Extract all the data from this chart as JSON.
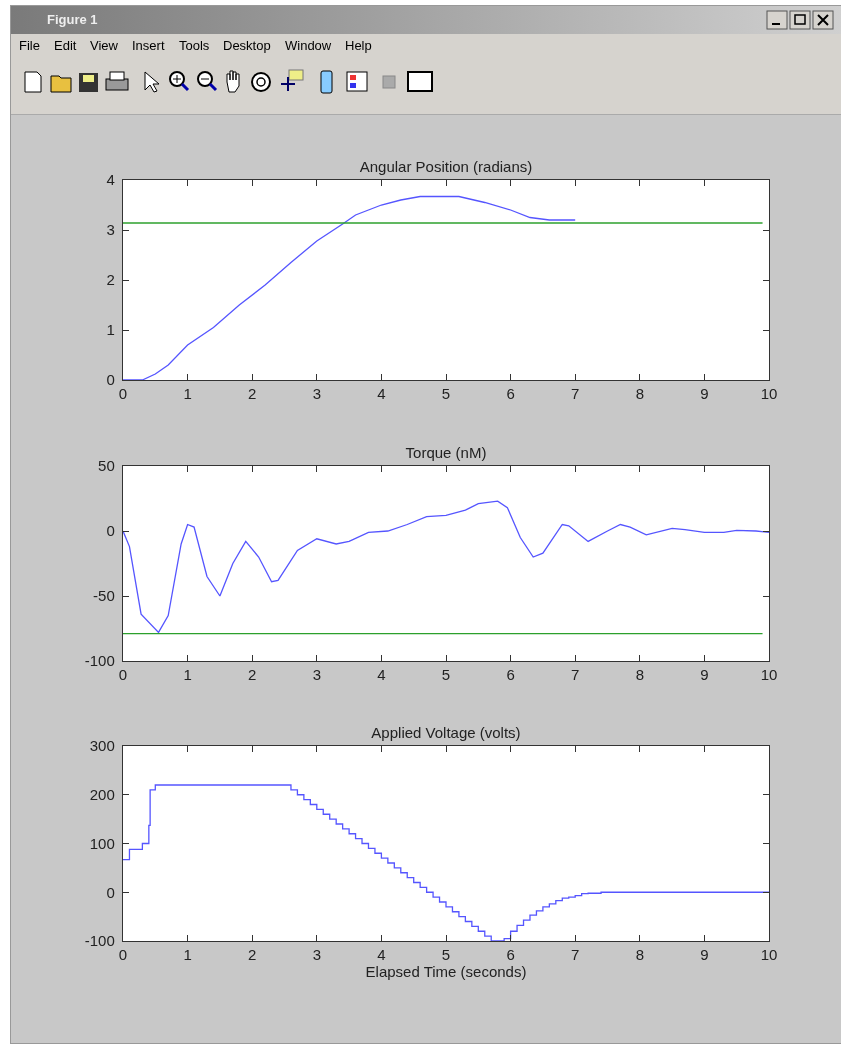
{
  "chart_data": [
    {
      "type": "line",
      "title": "Angular Position (radians)",
      "annotations": [
        "Figure 1",
        "File",
        "Edit",
        "View",
        "Insert",
        "Tools",
        "Desktop",
        "Window",
        "Help"
      ],
      "series": [
        {
          "color": "#5555ff",
          "x": [
            0,
            0.3,
            0.5,
            0.7,
            1.0,
            1.4,
            1.8,
            2.2,
            2.6,
            3.0,
            3.4,
            3.6,
            4.0,
            4.3,
            4.6,
            5.2,
            5.6,
            6.0,
            6.3,
            6.6,
            7.0
          ],
          "values": [
            0,
            0,
            0.12,
            0.3,
            0.7,
            1.05,
            1.5,
            1.9,
            2.35,
            2.78,
            3.12,
            3.3,
            3.5,
            3.6,
            3.67,
            3.67,
            3.55,
            3.4,
            3.25,
            3.2,
            3.2
          ]
        }
      ],
      "ref_lines": [
        {
          "axis": "y",
          "value": 3.14,
          "color": "#2ca02c"
        }
      ],
      "xlim": [
        0,
        10
      ],
      "xticks": [
        0,
        1,
        2,
        3,
        4,
        5,
        6,
        7,
        8,
        9,
        10
      ],
      "ylim": [
        0,
        4
      ],
      "yticks": [
        0,
        1,
        2,
        3,
        4
      ],
      "grid": false
    },
    {
      "type": "line",
      "title": "Torque (nM)",
      "series": [
        {
          "color": "#5555ff",
          "x": [
            0,
            0.1,
            0.28,
            0.55,
            0.7,
            0.9,
            1.0,
            1.1,
            1.3,
            1.5,
            1.7,
            1.9,
            2.1,
            2.3,
            2.4,
            2.7,
            3.0,
            3.3,
            3.5,
            3.8,
            4.1,
            4.4,
            4.7,
            5.0,
            5.3,
            5.5,
            5.8,
            5.95,
            6.15,
            6.35,
            6.5,
            6.8,
            6.9,
            7.2,
            7.5,
            7.7,
            7.85,
            8.1,
            8.5,
            8.7,
            9.0,
            9.3,
            9.5,
            9.8,
            10
          ],
          "values": [
            0,
            -12,
            -64,
            -78,
            -65,
            -10,
            5,
            3,
            -35,
            -50,
            -25,
            -8,
            -20,
            -39,
            -38,
            -15,
            -6,
            -10,
            -8,
            -1,
            0,
            5,
            11,
            12,
            16,
            21,
            23,
            18,
            -5,
            -20,
            -17,
            5,
            4,
            -8,
            0,
            5,
            3,
            -3,
            2,
            1,
            -1,
            -1,
            0.5,
            0,
            -1
          ]
        }
      ],
      "ref_lines": [
        {
          "axis": "y",
          "value": -79,
          "color": "#2ca02c"
        }
      ],
      "xlim": [
        0,
        10
      ],
      "xticks": [
        0,
        1,
        2,
        3,
        4,
        5,
        6,
        7,
        8,
        9,
        10
      ],
      "ylim": [
        -100,
        50
      ],
      "yticks": [
        -100,
        -50,
        0,
        50
      ],
      "grid": false
    },
    {
      "type": "step",
      "title": "Applied Voltage (volts)",
      "xlabel": "Elapsed Time (seconds)",
      "series": [
        {
          "color": "#5555ff",
          "x": [
            0,
            0.1,
            0.3,
            0.4,
            0.42,
            0.5,
            2.6,
            2.7,
            2.8,
            2.9,
            3.0,
            3.1,
            3.2,
            3.3,
            3.4,
            3.5,
            3.6,
            3.7,
            3.8,
            3.9,
            4.0,
            4.1,
            4.2,
            4.3,
            4.4,
            4.5,
            4.6,
            4.7,
            4.8,
            4.9,
            5.0,
            5.1,
            5.2,
            5.3,
            5.4,
            5.5,
            5.6,
            5.7,
            5.8,
            5.9,
            6.0,
            6.1,
            6.2,
            6.3,
            6.4,
            6.5,
            6.6,
            6.7,
            6.8,
            6.9,
            7.0,
            7.1,
            7.2,
            7.4,
            10
          ],
          "values": [
            67,
            88,
            100,
            137,
            210,
            220,
            210,
            200,
            190,
            180,
            170,
            160,
            150,
            140,
            130,
            120,
            110,
            100,
            90,
            80,
            70,
            60,
            50,
            40,
            30,
            20,
            10,
            0,
            -10,
            -20,
            -30,
            -40,
            -50,
            -60,
            -70,
            -80,
            -90,
            -100,
            -100,
            -95,
            -80,
            -68,
            -57,
            -47,
            -38,
            -30,
            -24,
            -17,
            -12,
            -10,
            -7,
            -3,
            -2,
            0,
            0
          ]
        }
      ],
      "xlim": [
        0,
        10
      ],
      "xticks": [
        0,
        1,
        2,
        3,
        4,
        5,
        6,
        7,
        8,
        9,
        10
      ],
      "ylim": [
        -100,
        300
      ],
      "yticks": [
        -100,
        0,
        100,
        200,
        300
      ],
      "grid": false
    }
  ]
}
